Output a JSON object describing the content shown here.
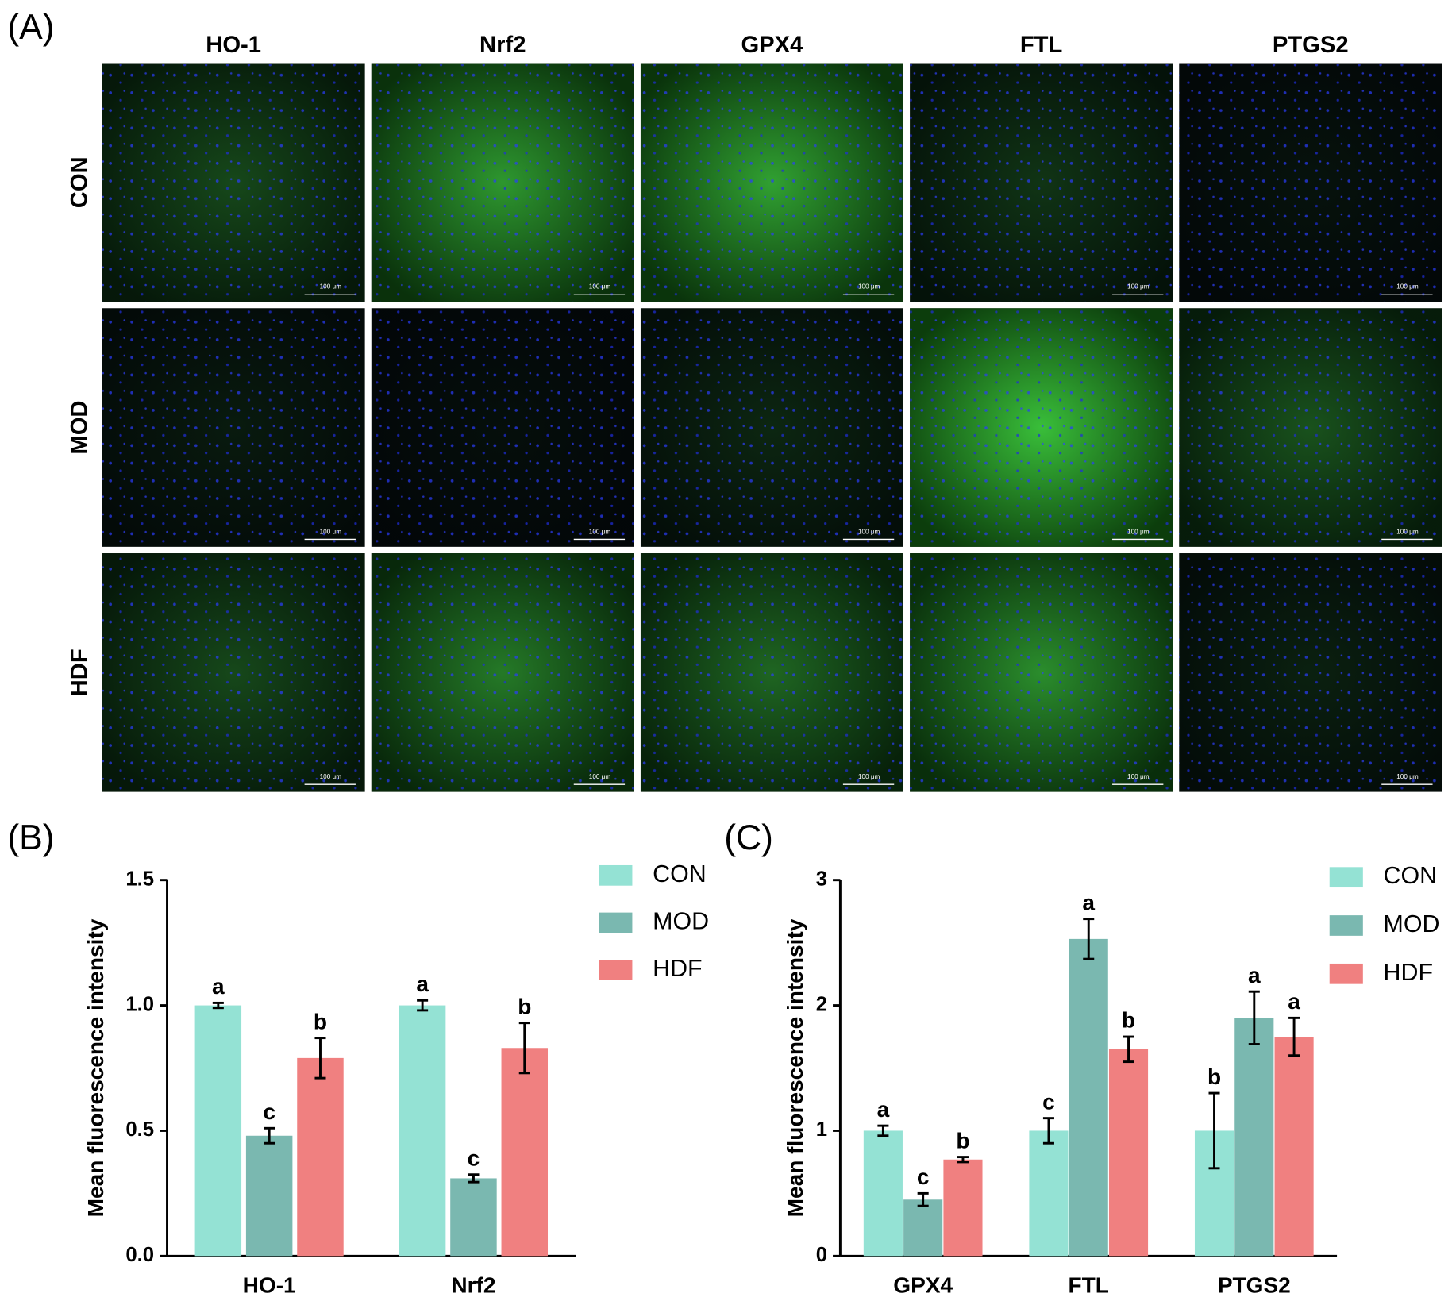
{
  "panel_labels": [
    "(A)",
    "(B)",
    "(C)"
  ],
  "microscopy": {
    "columns": [
      "HO-1",
      "Nrf2",
      "GPX4",
      "FTL",
      "PTGS2"
    ],
    "rows": [
      "CON",
      "MOD",
      "HDF"
    ],
    "scale_bar_label": "100 μm"
  },
  "chart_data": [
    {
      "type": "bar",
      "ylabel": "Mean fluorescence intensity",
      "categories": [
        "HO-1",
        "Nrf2"
      ],
      "ylim": [
        0,
        1.5
      ],
      "yticks": [
        {
          "value": 0,
          "label": "0.0"
        },
        0.5,
        {
          "value": 1,
          "label": "1.0"
        },
        1.5
      ],
      "series": [
        {
          "name": "CON",
          "color": "#94e2d4",
          "values": [
            1.0,
            1.0
          ],
          "errors": [
            0.01,
            0.02
          ],
          "significance": [
            "a",
            "a"
          ]
        },
        {
          "name": "MOD",
          "color": "#7ab8b0",
          "values": [
            0.48,
            0.31
          ],
          "errors": [
            0.03,
            0.015
          ],
          "significance": [
            "c",
            "c"
          ]
        },
        {
          "name": "HDF",
          "color": "#f08080",
          "values": [
            0.79,
            0.83
          ],
          "errors": [
            0.08,
            0.1
          ],
          "significance": [
            "b",
            "b"
          ]
        }
      ]
    },
    {
      "type": "bar",
      "ylabel": "Mean fluorescence intensity",
      "categories": [
        "GPX4",
        "FTL",
        "PTGS2"
      ],
      "ylim": [
        0,
        3
      ],
      "yticks": [
        0,
        1,
        2,
        3
      ],
      "series": [
        {
          "name": "CON",
          "color": "#94e2d4",
          "values": [
            1.0,
            1.0,
            1.0
          ],
          "errors": [
            0.04,
            0.1,
            0.3
          ],
          "significance": [
            "a",
            "c",
            "b"
          ]
        },
        {
          "name": "MOD",
          "color": "#7ab8b0",
          "values": [
            0.45,
            2.53,
            1.9
          ],
          "errors": [
            0.05,
            0.16,
            0.21
          ],
          "significance": [
            "c",
            "a",
            "a"
          ]
        },
        {
          "name": "HDF",
          "color": "#f08080",
          "values": [
            0.77,
            1.65,
            1.75
          ],
          "errors": [
            0.02,
            0.1,
            0.15
          ],
          "significance": [
            "b",
            "b",
            "a"
          ]
        }
      ]
    }
  ]
}
